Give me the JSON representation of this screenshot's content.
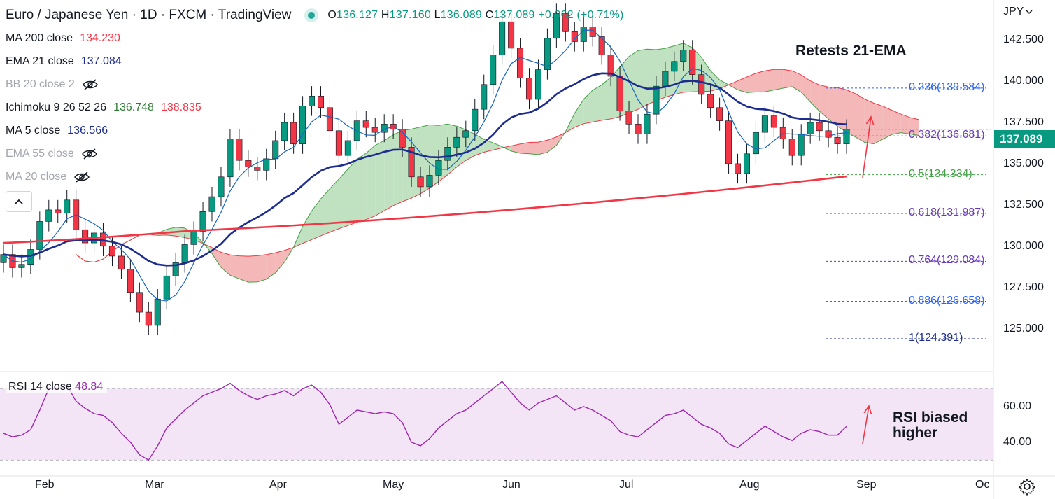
{
  "header": {
    "symbol_line": "Euro / Japanese Yen · 1D · FXCM · TradingView",
    "ohlc": {
      "o_label": "O",
      "o": "136.127",
      "h_label": "H",
      "h": "137.160",
      "l_label": "L",
      "l": "136.089",
      "c_label": "C",
      "c": "137.089",
      "change": "+0.962 (+0.71%)"
    }
  },
  "indicators": [
    {
      "label": "MA 200 close",
      "value": "134.230",
      "value_color": "#f23645",
      "hidden": false
    },
    {
      "label": "EMA 21 close",
      "value": "137.084",
      "value_color": "#1c2d8f",
      "hidden": false
    },
    {
      "label": "BB 20 close 2",
      "value": "",
      "hidden": true
    },
    {
      "label": "Ichimoku 9 26 52 26",
      "value": "136.748",
      "value_color": "#2e7d32",
      "value2": "138.835",
      "value2_color": "#f23645",
      "hidden": false
    },
    {
      "label": "MA 5 close",
      "value": "136.566",
      "value_color": "#1c2d8f",
      "hidden": false
    },
    {
      "label": "EMA 55 close",
      "value": "",
      "hidden": true
    },
    {
      "label": "MA 20 close",
      "value": "",
      "hidden": true
    }
  ],
  "rsi_legend": {
    "label": "RSI 14 close",
    "value": "48.84"
  },
  "currency": "JPY",
  "current_price_tag": "137.089",
  "annotations": {
    "ema_note": "Retests 21-EMA",
    "rsi_note_1": "RSI biased",
    "rsi_note_2": "higher"
  },
  "fibonacci": [
    {
      "label": "0.236(139.584)",
      "color": "#2962ff"
    },
    {
      "label": "0.382(136.681)",
      "color": "#673ab7"
    },
    {
      "label": "0.5(134.334)",
      "color": "#43a047"
    },
    {
      "label": "0.618(131.987)",
      "color": "#673ab7"
    },
    {
      "label": "0.764(129.084)",
      "color": "#673ab7"
    },
    {
      "label": "0.886(126.658)",
      "color": "#2962ff"
    },
    {
      "label": "1(124.391)",
      "color": "#1c2d8f"
    }
  ],
  "price_axis": [
    "142.500",
    "140.000",
    "137.500",
    "135.000",
    "132.500",
    "130.000",
    "127.500",
    "125.000"
  ],
  "rsi_axis": [
    "60.00",
    "40.00"
  ],
  "time_axis": [
    "Feb",
    "Mar",
    "Apr",
    "May",
    "Jun",
    "Jul",
    "Aug",
    "Sep",
    "Oc"
  ],
  "colors": {
    "up": "#089981",
    "down": "#f23645",
    "ema21": "#1c2d8f",
    "ma5": "#1565c0",
    "ma200": "#f23645",
    "cloud_bull": "#a5d6a7",
    "cloud_bear": "#ef9a9a",
    "rsi": "#9c27b0",
    "rsi_band": "#f3e5f5"
  },
  "chart_data": {
    "type": "candlestick",
    "price_range": [
      123.5,
      144.5
    ],
    "rsi_range": [
      27,
      76
    ],
    "months": [
      "Feb",
      "Mar",
      "Apr",
      "May",
      "Jun",
      "Jul",
      "Aug",
      "Sep",
      "Oc"
    ],
    "candle_closes": [
      129.5,
      128.7,
      128.9,
      129.8,
      131.5,
      132.2,
      132.0,
      132.8,
      131.0,
      130.2,
      130.8,
      130.0,
      129.4,
      128.6,
      127.2,
      126.0,
      125.2,
      126.8,
      128.2,
      129.0,
      130.1,
      130.9,
      132.1,
      133.0,
      134.2,
      136.5,
      135.2,
      134.8,
      134.6,
      135.3,
      136.4,
      137.5,
      136.2,
      138.5,
      139.1,
      138.4,
      137.0,
      135.5,
      136.4,
      137.6,
      137.2,
      136.9,
      137.4,
      137.1,
      136.0,
      134.2,
      133.6,
      134.3,
      135.2,
      136.0,
      136.6,
      137.0,
      138.3,
      139.8,
      141.6,
      143.6,
      142.0,
      140.2,
      138.9,
      140.7,
      142.6,
      144.1,
      143.0,
      142.4,
      143.3,
      142.7,
      141.6,
      140.3,
      138.2,
      137.4,
      136.8,
      138.0,
      139.7,
      140.6,
      141.2,
      141.9,
      140.4,
      139.2,
      138.4,
      137.6,
      135.0,
      134.4,
      135.6,
      136.9,
      137.9,
      137.2,
      136.5,
      135.5,
      136.8,
      137.5,
      137.0,
      136.6,
      136.2,
      137.089
    ],
    "rsi_values": [
      45,
      43,
      44,
      47,
      58,
      70,
      70,
      72,
      63,
      59,
      56,
      55,
      51,
      45,
      40,
      33,
      30,
      38,
      48,
      53,
      58,
      62,
      66,
      68,
      70,
      73,
      69,
      66,
      64,
      66,
      67,
      69,
      66,
      70,
      72,
      68,
      61,
      50,
      54,
      58,
      57,
      56,
      57,
      56,
      51,
      40,
      38,
      42,
      48,
      52,
      56,
      58,
      62,
      66,
      70,
      74,
      68,
      62,
      58,
      62,
      64,
      66,
      62,
      58,
      60,
      58,
      55,
      52,
      46,
      44,
      43,
      47,
      51,
      55,
      56,
      58,
      54,
      50,
      48,
      45,
      39,
      37,
      41,
      45,
      49,
      46,
      43,
      41,
      45,
      47,
      46,
      44,
      44,
      48.84
    ],
    "fib_levels": [
      139.584,
      136.681,
      134.334,
      131.987,
      129.084,
      126.658,
      124.391
    ]
  }
}
